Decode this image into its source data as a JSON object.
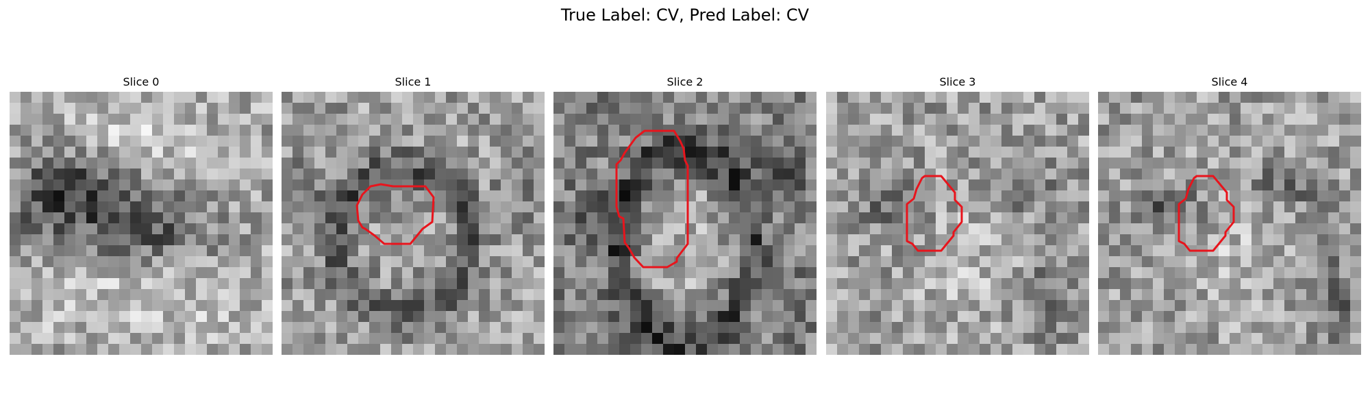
{
  "figure": {
    "title": "True Label: CV, Pred Label: CV"
  },
  "panels": [
    {
      "title": "Slice 0",
      "has_contour": false,
      "contour_color": "#e8141c"
    },
    {
      "title": "Slice 1",
      "has_contour": true,
      "contour_color": "#e8141c"
    },
    {
      "title": "Slice 2",
      "has_contour": true,
      "contour_color": "#e8141c"
    },
    {
      "title": "Slice 3",
      "has_contour": true,
      "contour_color": "#e8141c"
    },
    {
      "title": "Slice 4",
      "has_contour": true,
      "contour_color": "#e8141c"
    }
  ],
  "colormap": "gray"
}
